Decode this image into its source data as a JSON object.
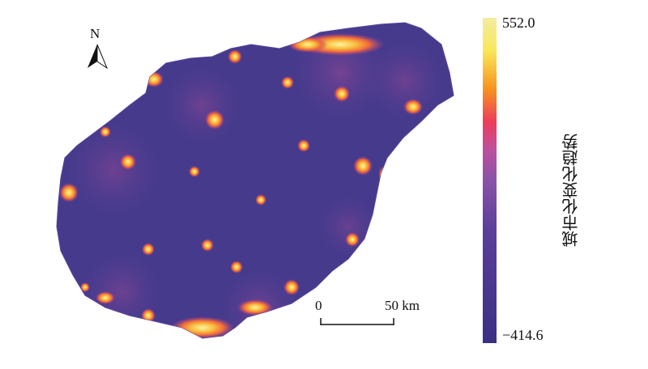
{
  "map": {
    "north_label": "N",
    "scale": {
      "start_label": "0",
      "end_label": "50 km"
    },
    "legend": {
      "title": "城市化变化趋势",
      "max_label": "552.0",
      "min_label": "−414.6",
      "colors": [
        "#3b2f84",
        "#5b3f9a",
        "#8a52a8",
        "#c04f9c",
        "#ee3c5a",
        "#f7921e",
        "#f9e85a",
        "#f3ec9e"
      ]
    },
    "colors": {
      "background_land": "#4a3b8e",
      "hot_core": "#f6e87a",
      "hot_mid": "#f7a22a",
      "hot_edge": "#e64a7a"
    }
  }
}
